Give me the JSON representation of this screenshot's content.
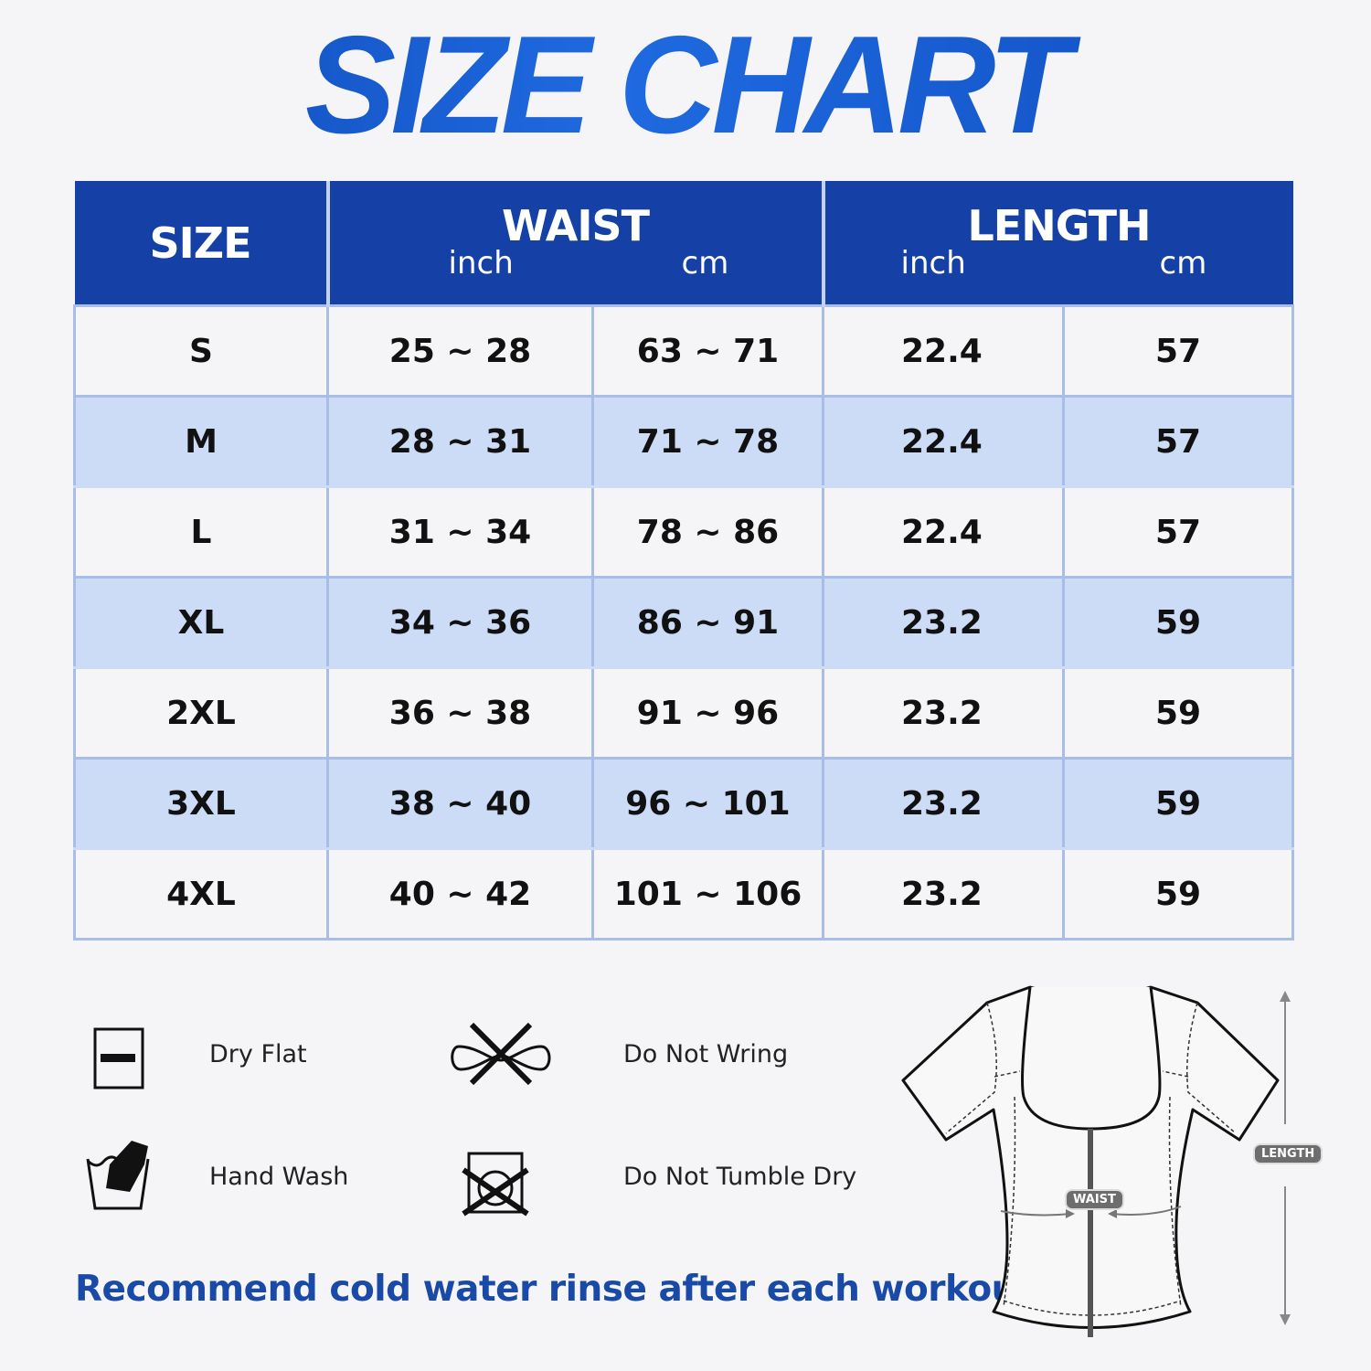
{
  "title": "SIZE CHART",
  "table": {
    "headers": {
      "size": "SIZE",
      "waist": "WAIST",
      "length": "LENGTH",
      "inch": "inch",
      "cm": "cm"
    },
    "rows": [
      {
        "size": "S",
        "waist_inch": "25 ~ 28",
        "waist_cm": "63 ~ 71",
        "length_inch": "22.4",
        "length_cm": "57"
      },
      {
        "size": "M",
        "waist_inch": "28 ~ 31",
        "waist_cm": "71 ~ 78",
        "length_inch": "22.4",
        "length_cm": "57"
      },
      {
        "size": "L",
        "waist_inch": "31 ~ 34",
        "waist_cm": "78 ~ 86",
        "length_inch": "22.4",
        "length_cm": "57"
      },
      {
        "size": "XL",
        "waist_inch": "34 ~ 36",
        "waist_cm": "86 ~ 91",
        "length_inch": "23.2",
        "length_cm": "59"
      },
      {
        "size": "2XL",
        "waist_inch": "36 ~ 38",
        "waist_cm": "91 ~ 96",
        "length_inch": "23.2",
        "length_cm": "59"
      },
      {
        "size": "3XL",
        "waist_inch": "38 ~ 40",
        "waist_cm": "96 ~ 101",
        "length_inch": "23.2",
        "length_cm": "59"
      },
      {
        "size": "4XL",
        "waist_inch": "40 ~ 42",
        "waist_cm": "101 ~ 106",
        "length_inch": "23.2",
        "length_cm": "59"
      }
    ]
  },
  "care": {
    "dry_flat": "Dry Flat",
    "do_not_wring": "Do Not Wring",
    "hand_wash": "Hand Wash",
    "do_not_tumble_dry": "Do Not Tumble Dry"
  },
  "note": "Recommend cold water rinse after each workout.",
  "diagram": {
    "waist_label": "WAIST",
    "length_label": "LENGTH"
  },
  "colors": {
    "header_blue": "#1541a6",
    "row_blue": "#ccdbf6",
    "note_blue": "#1a4aa8"
  }
}
